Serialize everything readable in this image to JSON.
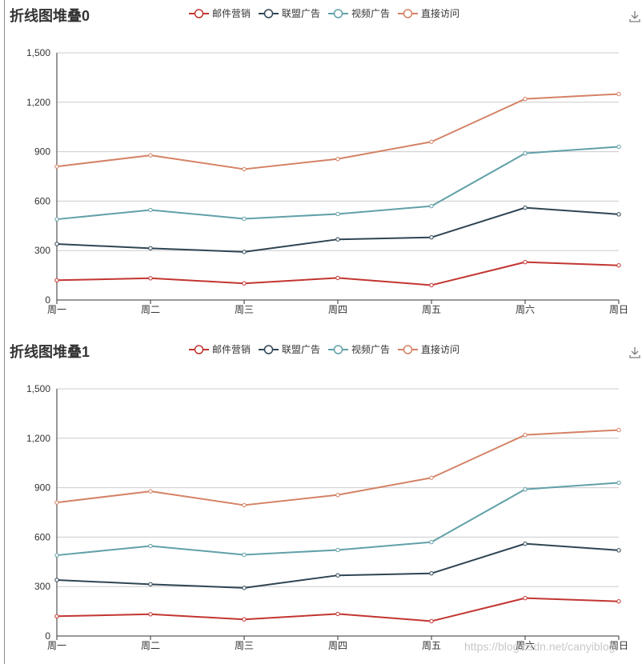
{
  "chart_data": [
    {
      "type": "line",
      "title": "折线图堆叠0",
      "categories": [
        "周一",
        "周二",
        "周三",
        "周四",
        "周五",
        "周六",
        "周日"
      ],
      "stacked": true,
      "series": [
        {
          "name": "邮件营销",
          "values": [
            120,
            132,
            101,
            134,
            90,
            230,
            210
          ],
          "color": "#c23531"
        },
        {
          "name": "联盟广告",
          "values": [
            220,
            182,
            191,
            234,
            290,
            330,
            310
          ],
          "color": "#2f4554"
        },
        {
          "name": "视频广告",
          "values": [
            150,
            232,
            201,
            154,
            190,
            330,
            410
          ],
          "color": "#61a0a8"
        },
        {
          "name": "直接访问",
          "values": [
            320,
            332,
            301,
            334,
            390,
            330,
            320
          ],
          "color": "#d48265"
        }
      ],
      "yticks": [
        "0",
        "300",
        "600",
        "900",
        "1,200",
        "1,500"
      ],
      "ylim": [
        0,
        1500
      ],
      "grid": true,
      "legend_position": "top-center"
    },
    {
      "type": "line",
      "title": "折线图堆叠1",
      "categories": [
        "周一",
        "周二",
        "周三",
        "周四",
        "周五",
        "周六",
        "周日"
      ],
      "stacked": true,
      "series": [
        {
          "name": "邮件营销",
          "values": [
            120,
            132,
            101,
            134,
            90,
            230,
            210
          ],
          "color": "#c23531"
        },
        {
          "name": "联盟广告",
          "values": [
            220,
            182,
            191,
            234,
            290,
            330,
            310
          ],
          "color": "#2f4554"
        },
        {
          "name": "视频广告",
          "values": [
            150,
            232,
            201,
            154,
            190,
            330,
            410
          ],
          "color": "#61a0a8"
        },
        {
          "name": "直接访问",
          "values": [
            320,
            332,
            301,
            334,
            390,
            330,
            320
          ],
          "color": "#d48265"
        }
      ],
      "yticks": [
        "0",
        "300",
        "600",
        "900",
        "1,200",
        "1,500"
      ],
      "ylim": [
        0,
        1500
      ],
      "grid": true,
      "legend_position": "top-center"
    }
  ],
  "watermark": "https://blog.csdn.net/canyiblog"
}
